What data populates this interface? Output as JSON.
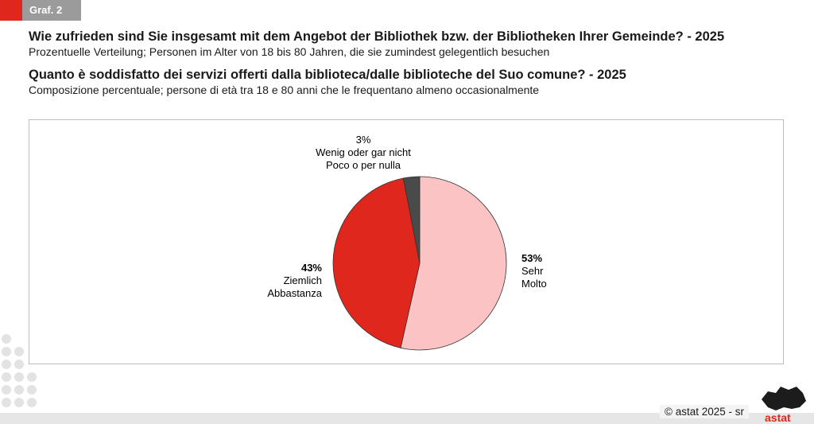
{
  "header": {
    "badge_label": "Graf. 2"
  },
  "titles": {
    "title_de": "Wie zufrieden sind Sie insgesamt mit dem Angebot der Bibliothek bzw. der Bibliotheken Ihrer Gemeinde? - 2025",
    "subtitle_de": "Prozentuelle Verteilung; Personen im Alter von 18 bis 80 Jahren, die sie zumindest gelegentlich besuchen",
    "title_it": "Quanto è soddisfatto dei servizi offerti dalla biblioteca/dalle biblioteche del Suo comune? - 2025",
    "subtitle_it": "Composizione percentuale; persone di età tra 18 e 80 anni che le frequentano almeno occasionalmente"
  },
  "chart_data": {
    "type": "pie",
    "slices": [
      {
        "value": 53,
        "label_text": "53%",
        "label_de": "Sehr",
        "label_it": "Molto",
        "color": "#fcc3c4"
      },
      {
        "value": 43,
        "label_text": "43%",
        "label_de": "Ziemlich",
        "label_it": "Abbastanza",
        "color": "#e0271e"
      },
      {
        "value": 3,
        "label_text": "3%",
        "label_de": "Wenig oder gar nicht",
        "label_it": "Poco o per nulla",
        "color": "#4a4a4a"
      }
    ],
    "legend": "none"
  },
  "footer": {
    "copyright_symbol": "©",
    "copyright_text": "astat 2025 - sr",
    "logo_text": "astat"
  }
}
